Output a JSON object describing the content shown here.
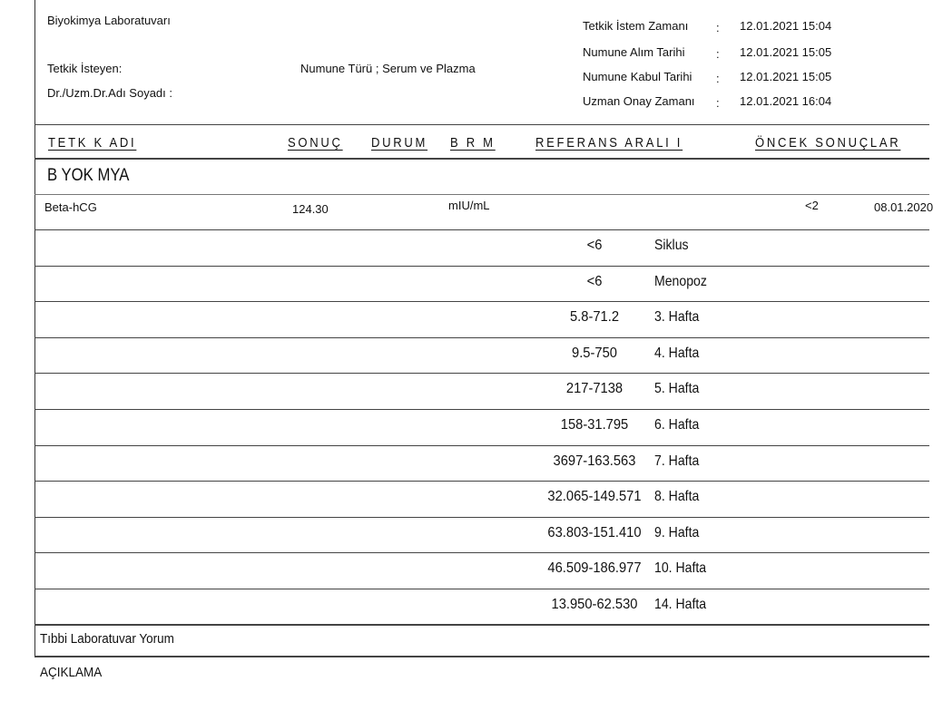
{
  "header": {
    "lab_name": "Biyokimya Laboratuvarı",
    "requester_label": "Tetkik İsteyen:",
    "doctor_label": "Dr./Uzm.Dr.Adı Soyadı :",
    "sample_type_label": "Numune Türü",
    "sample_type_value": "Serum ve Plazma",
    "times": [
      {
        "label": "Tetkik İstem Zamanı",
        "value": "12.01.2021 15:04"
      },
      {
        "label": "Numune Alım Tarihi",
        "value": "12.01.2021 15:05"
      },
      {
        "label": "Numune Kabul Tarihi",
        "value": "12.01.2021 15:05"
      },
      {
        "label": "Uzman Onay Zamanı",
        "value": "12.01.2021 16:04"
      }
    ]
  },
  "columns": {
    "test": "TETK K ADI",
    "result": "SONUÇ",
    "status": "DURUM",
    "unit": "B R M",
    "reference": "REFERANS ARALI I",
    "previous": "ÖNCEK SONUÇLAR"
  },
  "section": "B YOK MYA",
  "test": {
    "name": "Beta-hCG",
    "result": "124.30",
    "unit": "mIU/mL",
    "previous_value": "<2",
    "previous_date": "08.01.2020"
  },
  "references": [
    {
      "range": "<6",
      "label": "Siklus"
    },
    {
      "range": "<6",
      "label": "Menopoz"
    },
    {
      "range": "5.8-71.2",
      "label": "3. Hafta"
    },
    {
      "range": "9.5-750",
      "label": "4. Hafta"
    },
    {
      "range": "217-7138",
      "label": "5. Hafta"
    },
    {
      "range": "158-31.795",
      "label": "6. Hafta"
    },
    {
      "range": "3697-163.563",
      "label": "7. Hafta"
    },
    {
      "range": "32.065-149.571",
      "label": "8. Hafta"
    },
    {
      "range": "63.803-151.410",
      "label": "9. Hafta"
    },
    {
      "range": "46.509-186.977",
      "label": "10. Hafta"
    },
    {
      "range": "13.950-62.530",
      "label": "14. Hafta"
    }
  ],
  "comment_label": "Tıbbi Laboratuvar Yorum",
  "note_label": "AÇIKLAMA"
}
